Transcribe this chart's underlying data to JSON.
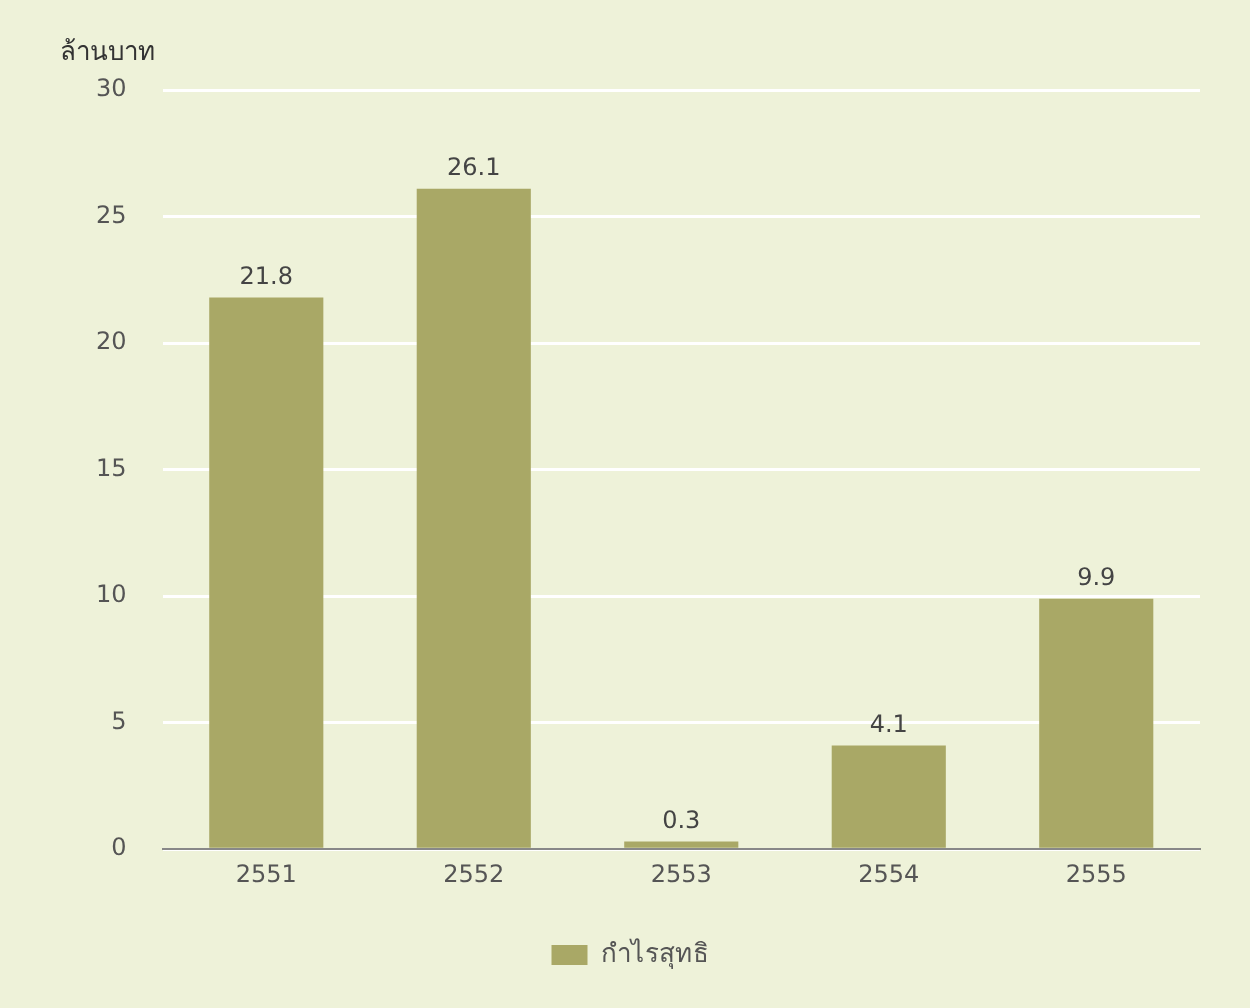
{
  "chart_data": {
    "type": "bar",
    "ylabel": "ล้านบาท",
    "categories": [
      "2551",
      "2552",
      "2553",
      "2554",
      "2555"
    ],
    "series": [
      {
        "name": "กำไรสุทธิ",
        "color": "#a9a866",
        "values": [
          21.8,
          26.1,
          0.3,
          4.1,
          9.9
        ]
      }
    ],
    "ylim": [
      0,
      30
    ],
    "yticks": [
      0,
      5,
      10,
      15,
      20,
      25,
      30
    ],
    "grid": "y",
    "legend": "bottom",
    "data_labels": true
  }
}
